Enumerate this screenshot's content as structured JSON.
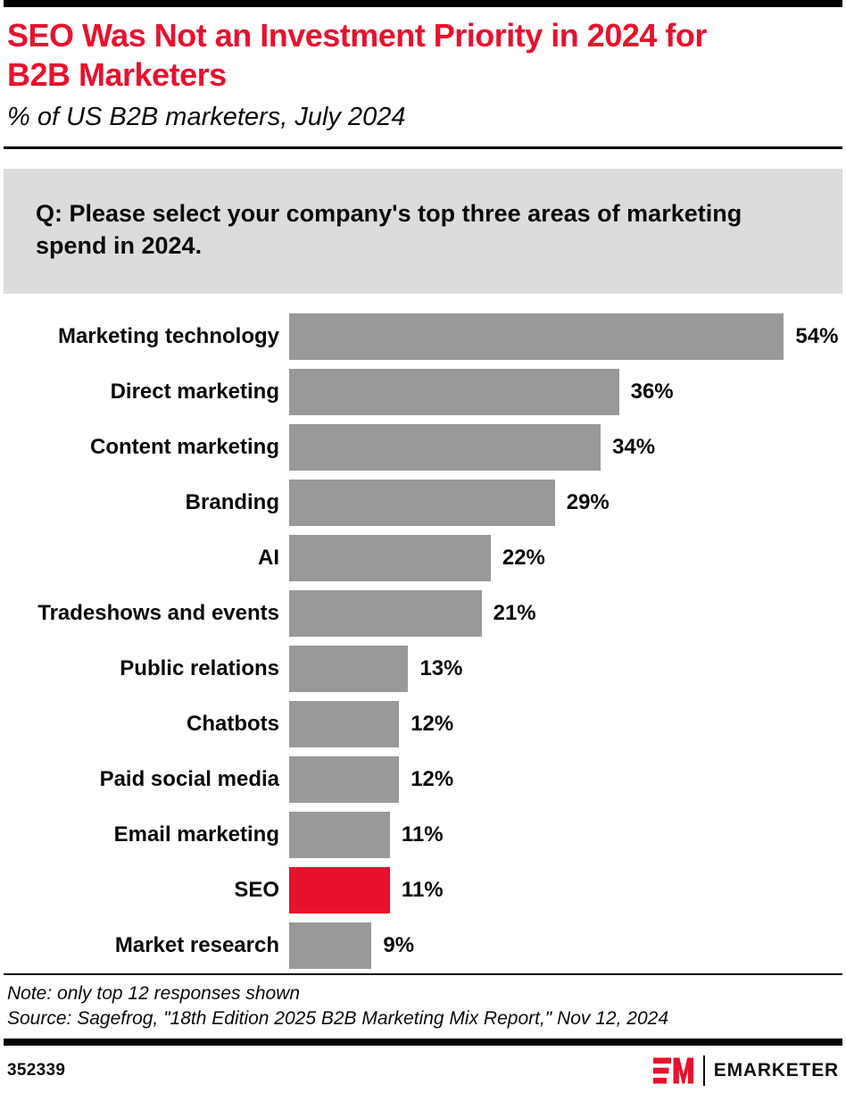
{
  "header": {
    "title_lines": [
      "SEO Was Not an Investment Priority in 2024 for",
      "B2B Marketers"
    ],
    "subtitle": "% of US B2B marketers, July 2024"
  },
  "question": {
    "text": "Q: Please select your company's top three areas of marketing spend in 2024."
  },
  "chart_data": {
    "type": "bar",
    "orientation": "horizontal",
    "title": "SEO Was Not an Investment Priority in 2024 for B2B Marketers",
    "subtitle": "% of US B2B marketers, July 2024",
    "categories": [
      "Marketing technology",
      "Direct marketing",
      "Content marketing",
      "Branding",
      "AI",
      "Tradeshows and events",
      "Public relations",
      "Chatbots",
      "Paid social media",
      "Email marketing",
      "SEO",
      "Market research"
    ],
    "values": [
      54,
      36,
      34,
      29,
      22,
      21,
      13,
      12,
      12,
      11,
      11,
      9
    ],
    "unit": "%",
    "xlim": [
      0,
      60
    ],
    "grid": false,
    "data_labels": true,
    "legend": false,
    "bar_color": "#999999",
    "highlight": {
      "category": "SEO",
      "color": "#e8112d"
    }
  },
  "notes": {
    "note": "Note: only top 12 responses shown",
    "source": "Source: Sagefrog, \"18th Edition 2025 B2B Marketing Mix Report,\" Nov 12, 2024"
  },
  "footer": {
    "chart_id": "352339",
    "brand": "EMARKETER"
  },
  "colors": {
    "accent_red": "#e8112d",
    "bar_gray": "#999999",
    "question_bg": "#dcdcdc"
  }
}
